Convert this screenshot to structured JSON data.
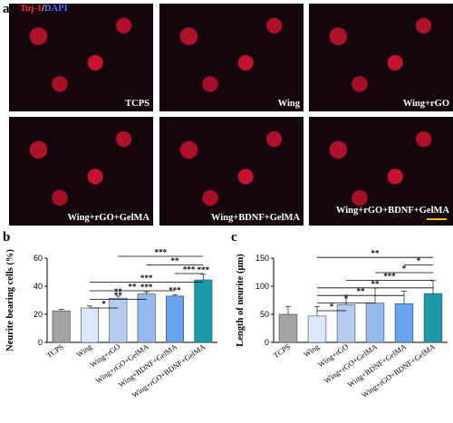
{
  "figure": {
    "panel_a_letter": "a",
    "panel_b_letter": "b",
    "panel_c_letter": "c",
    "stain_red": "Tuj-1",
    "stain_sep": "/",
    "stain_blue": "DAPI",
    "micrographs": [
      "TCPS",
      "Wing",
      "Wing+rGO",
      "Wing+rGO+GelMA",
      "Wing+BDNF+GelMA",
      "Wing+rGO+BDNF+GelMA"
    ]
  },
  "colors": {
    "scale_bar": "#f2c200",
    "bars": [
      "#a3a3a3",
      "#dce9fb",
      "#b4cdf0",
      "#93b9ef",
      "#6aa3ef",
      "#1a9aa6"
    ]
  },
  "chart_data": [
    {
      "type": "bar",
      "panel": "b",
      "categories": [
        "TCPS",
        "Wing",
        "Wing+rGO",
        "Wing+rGO+GelMA",
        "Wing+BDNF+GelMA",
        "Wing+rGO+BDNF+GelMA"
      ],
      "values": [
        22.5,
        24.5,
        31.5,
        34.5,
        33,
        44.5
      ],
      "errors": [
        1,
        1.5,
        1.5,
        1.5,
        1,
        4
      ],
      "ylabel": "Neurite bearing cells (%)",
      "ylim": [
        0,
        60
      ],
      "yticks": [
        0,
        20,
        40,
        60
      ],
      "bar_sig": [
        "",
        "",
        "**",
        "***",
        "***",
        "***"
      ],
      "brackets": [
        {
          "from": 1,
          "to": 2,
          "level": 1,
          "label": "*"
        },
        {
          "from": 1,
          "to": 3,
          "level": 2,
          "label": "**"
        },
        {
          "from": 1,
          "to": 4,
          "level": 3,
          "label": "**"
        },
        {
          "from": 1,
          "to": 5,
          "level": 4,
          "label": "***"
        },
        {
          "from": 4,
          "to": 5,
          "level": 5,
          "label": "***"
        },
        {
          "from": 3,
          "to": 5,
          "level": 6,
          "label": "**"
        },
        {
          "from": 2,
          "to": 5,
          "level": 7,
          "label": "***"
        }
      ]
    },
    {
      "type": "bar",
      "panel": "c",
      "categories": [
        "TCPS",
        "Wing",
        "Wing+rGO",
        "Wing+rGO+GelMA",
        "Wing+BDNF+GelMA",
        "Wing+rGO+BDNF+GelMA"
      ],
      "values": [
        50,
        47,
        67,
        70,
        69,
        87
      ],
      "errors": [
        14,
        17,
        17,
        27,
        22,
        23
      ],
      "ylabel": "Length of neurite (μm)",
      "ylim": [
        0,
        150
      ],
      "yticks": [
        0,
        50,
        100,
        150
      ],
      "bar_sig": [
        "",
        "",
        "",
        "",
        "",
        ""
      ],
      "brackets": [
        {
          "from": 1,
          "to": 2,
          "level": 1,
          "label": "*"
        },
        {
          "from": 1,
          "to": 3,
          "level": 2,
          "label": "*"
        },
        {
          "from": 1,
          "to": 4,
          "level": 3,
          "label": "**"
        },
        {
          "from": 1,
          "to": 5,
          "level": 4,
          "label": "**"
        },
        {
          "from": 2,
          "to": 5,
          "level": 5,
          "label": "***"
        },
        {
          "from": 3,
          "to": 5,
          "level": 6,
          "label": "*"
        },
        {
          "from": 4,
          "to": 5,
          "level": 7,
          "label": "*"
        },
        {
          "from": 1,
          "to": 5,
          "level": 8,
          "label": "**"
        }
      ]
    }
  ]
}
